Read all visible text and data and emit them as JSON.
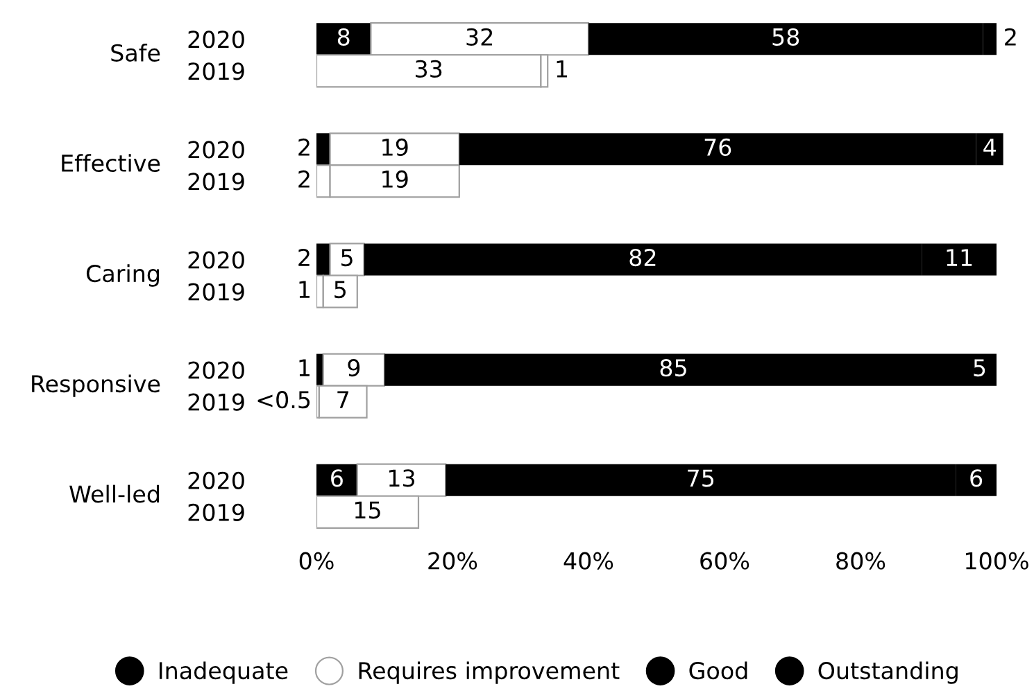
{
  "chart_data": {
    "type": "bar",
    "orientation": "horizontal",
    "stacked": true,
    "categories": [
      "2020",
      "2019",
      "2020",
      "2019",
      "2020",
      "2019",
      "2020",
      "2019",
      "2020",
      "2019"
    ],
    "annotations": [
      "Safe",
      "Effective",
      "Caring",
      "Responsive",
      "Well-led"
    ],
    "series": [
      {
        "name": "Inadequate",
        "color": "#000000",
        "colors": [
          "#000000",
          "#ffffff",
          "#000000",
          "#ffffff",
          "#000000",
          "#ffffff",
          "#000000",
          "#ffffff",
          "#000000",
          "#ffffff"
        ],
        "values": [
          8,
          null,
          2,
          2,
          2,
          1,
          1,
          0.4,
          6,
          null
        ],
        "value_labels": [
          "8",
          null,
          "2",
          "2",
          "2",
          "1",
          "1",
          "<0.5",
          "6",
          null
        ]
      },
      {
        "name": "Requires improvement",
        "color": "#ffffff",
        "values": [
          32,
          33,
          19,
          19,
          5,
          5,
          9,
          7,
          13,
          15
        ],
        "value_labels": [
          "32",
          "33",
          "19",
          "19",
          "5",
          "5",
          "9",
          "7",
          "13",
          "15"
        ]
      },
      {
        "name": "Good",
        "color": "#000000",
        "colors": [
          "#000000",
          "#ffffff",
          "#000000",
          "#ffffff",
          "#000000",
          "#ffffff",
          "#000000",
          "#ffffff",
          "#000000",
          "#ffffff"
        ],
        "values": [
          58,
          null,
          76,
          null,
          82,
          null,
          85,
          null,
          75,
          null
        ],
        "value_labels": [
          "58",
          null,
          "76",
          null,
          "82",
          null,
          "85",
          null,
          "75",
          null
        ]
      },
      {
        "name": "Outstanding",
        "color": "#000000",
        "colors": [
          "#000000",
          "#ffffff",
          "#000000",
          "#ffffff",
          "#000000",
          "#ffffff",
          "#000000",
          "#ffffff",
          "#000000",
          "#ffffff"
        ],
        "values": [
          2,
          1,
          4,
          null,
          11,
          null,
          5,
          null,
          6,
          null
        ],
        "value_labels": [
          "2",
          "1",
          "4",
          null,
          "11",
          null,
          "5",
          null,
          "6",
          null
        ]
      }
    ],
    "xlim": [
      0,
      101
    ],
    "xticks": [
      {
        "value": 0,
        "label": "0%"
      },
      {
        "value": 20,
        "label": "20%"
      },
      {
        "value": 40,
        "label": "40%"
      },
      {
        "value": 60,
        "label": "60%"
      },
      {
        "value": 80,
        "label": "80%"
      },
      {
        "value": 100,
        "label": "100%"
      }
    ],
    "legend": "bottom"
  }
}
